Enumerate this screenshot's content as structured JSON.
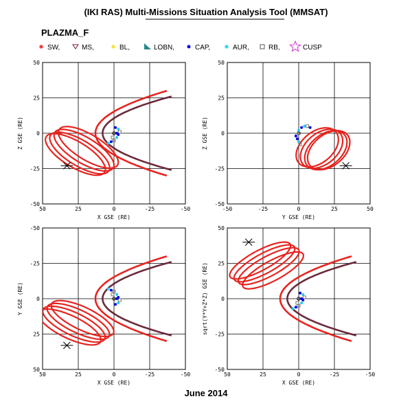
{
  "header": {
    "title": "(IKI RAS) Multi-Missions Situation Analysis Tool (MMSAT)",
    "subtitle": "PLAZMA_F",
    "date": "June 2014"
  },
  "legend": [
    {
      "label": "SW,",
      "color": "#e8231e",
      "icon": "sun-star-icon"
    },
    {
      "label": "MS,",
      "color": "#7a1a3a",
      "icon": "inverted-triangle-icon"
    },
    {
      "label": "BL,",
      "color": "#f2dc28",
      "icon": "yellow-star-icon"
    },
    {
      "label": "LOBN,",
      "color": "#2a8a8a",
      "icon": "teal-triangle-icon"
    },
    {
      "label": "CAP,",
      "color": "#0000ee",
      "icon": "blue-dot-icon"
    },
    {
      "label": "AUR,",
      "color": "#22ccee",
      "icon": "cyan-star-icon"
    },
    {
      "label": "RB,",
      "color": "#888888",
      "icon": "grey-square-icon"
    },
    {
      "label": "CUSP",
      "color": "#cc33cc",
      "icon": "magenta-star-icon"
    }
  ],
  "colors": {
    "orbit": "#e8231e",
    "boundary": "#6b2a3a",
    "grid": "#000000"
  },
  "chart_data": [
    {
      "type": "line",
      "panel": "x-z",
      "xlabel": "X GSE (RE)",
      "ylabel": "Z GSE (RE)",
      "xlim": [
        50,
        -50
      ],
      "ylim": [
        -50,
        50
      ],
      "xticks": [
        "50",
        "25",
        "0",
        "-25",
        "-50"
      ],
      "yticks": [
        "-50",
        "-25",
        "0",
        "25",
        "50"
      ],
      "grid": true
    },
    {
      "type": "line",
      "panel": "y-z",
      "xlabel": "Y GSE (RE)",
      "ylabel": "Z GSE (RE)",
      "xlim": [
        -50,
        50
      ],
      "ylim": [
        -50,
        50
      ],
      "xticks": [
        "-50",
        "-25",
        "0",
        "25",
        "50"
      ],
      "yticks": [
        "-50",
        "-25",
        "0",
        "25",
        "50"
      ],
      "grid": true
    },
    {
      "type": "line",
      "panel": "x-y",
      "xlabel": "X GSE (RE)",
      "ylabel": "Y GSE (RE)",
      "xlim": [
        50,
        -50
      ],
      "ylim": [
        50,
        -50
      ],
      "xticks": [
        "50",
        "25",
        "0",
        "-25",
        "-50"
      ],
      "yticks": [
        "50",
        "25",
        "0",
        "-25",
        "-50"
      ],
      "grid": true
    },
    {
      "type": "line",
      "panel": "x-r",
      "xlabel": "X GSE (RE)",
      "ylabel": "sqrt(Y*Y+Z*Z) GSE (RE)",
      "xlim": [
        50,
        -50
      ],
      "ylim": [
        -50,
        50
      ],
      "xticks": [
        "50",
        "25",
        "0",
        "-25",
        "-50"
      ],
      "yticks": [
        "-50",
        "-25",
        "0",
        "25",
        "50"
      ],
      "grid": true
    }
  ]
}
